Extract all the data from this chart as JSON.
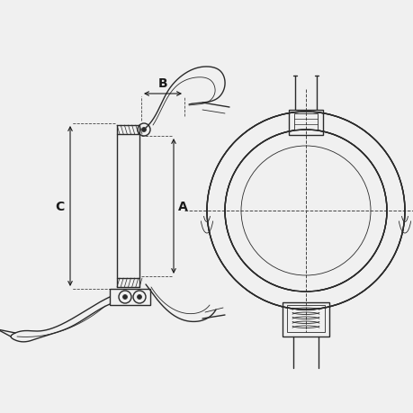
{
  "bg_color": "#f0f0f0",
  "line_color": "#2a2a2a",
  "dim_color": "#1a1a1a",
  "dashed_color": "#444444",
  "label_A": "A",
  "label_B": "B",
  "label_C": "C",
  "lw_main": 1.0,
  "lw_thin": 0.6,
  "lw_dim": 0.8
}
